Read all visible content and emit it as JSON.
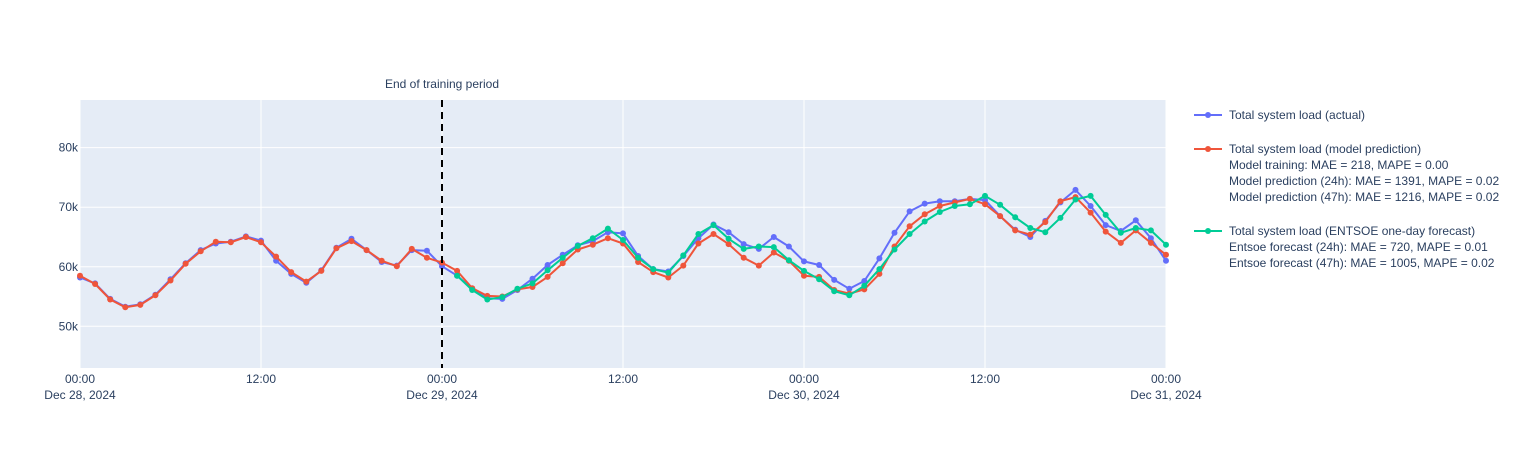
{
  "chart_data": {
    "type": "line",
    "title": "",
    "xlabel": "",
    "ylabel": "",
    "x_start": "2024-12-28 00:00",
    "x_step_hours": 1,
    "xlim": [
      "2024-12-28 00:00",
      "2024-12-31 00:00"
    ],
    "ylim": [
      43000,
      88000
    ],
    "y_ticks": [
      50000,
      60000,
      70000,
      80000
    ],
    "y_tick_labels": [
      "50k",
      "60k",
      "70k",
      "80k"
    ],
    "x_ticks": [
      {
        "time": "2024-12-28 00:00",
        "label": "00:00",
        "sublabel": "Dec 28, 2024"
      },
      {
        "time": "2024-12-28 12:00",
        "label": "12:00",
        "sublabel": ""
      },
      {
        "time": "2024-12-29 00:00",
        "label": "00:00",
        "sublabel": "Dec 29, 2024"
      },
      {
        "time": "2024-12-29 12:00",
        "label": "12:00",
        "sublabel": ""
      },
      {
        "time": "2024-12-30 00:00",
        "label": "00:00",
        "sublabel": "Dec 30, 2024"
      },
      {
        "time": "2024-12-30 12:00",
        "label": "12:00",
        "sublabel": ""
      },
      {
        "time": "2024-12-31 00:00",
        "label": "00:00",
        "sublabel": "Dec 31, 2024"
      }
    ],
    "grid": true,
    "legend_position": "right",
    "annotation": {
      "text": "End of training period",
      "x": "2024-12-29 00:00",
      "line_style": "dashed",
      "color": "#000000"
    },
    "series": [
      {
        "name": "Total system load (actual)",
        "color": "#636efa",
        "legend_notes": [],
        "x_start": "2024-12-28 00:00",
        "values": [
          58200,
          57200,
          54600,
          53300,
          53700,
          55300,
          57900,
          60600,
          62800,
          63900,
          64200,
          65100,
          64400,
          61000,
          58800,
          57300,
          59400,
          63200,
          64700,
          62800,
          60800,
          60200,
          62800,
          62700,
          60100,
          58500,
          56300,
          54700,
          54600,
          56100,
          58000,
          60300,
          62000,
          63600,
          64300,
          65800,
          65600,
          61800,
          59600,
          59200,
          61800,
          64800,
          67100,
          65800,
          63800,
          63000,
          65000,
          63400,
          60900,
          60300,
          57800,
          56300,
          57600,
          61400,
          65700,
          69300,
          70600,
          71000,
          71000,
          71400,
          71200,
          68500,
          66200,
          65000,
          67700,
          70800,
          72900,
          70200,
          67000,
          66000,
          67800,
          64800,
          61000
        ],
        "x_end_fraction": true
      },
      {
        "name": "Total system load (model prediction)",
        "color": "#ef553b",
        "legend_notes": [
          "Model training: MAE = 218, MAPE = 0.00",
          "Model prediction (24h): MAE = 1391, MAPE = 0.02",
          "Model prediction (47h): MAE = 1216, MAPE = 0.02"
        ],
        "x_start": "2024-12-28 00:00",
        "values": [
          58500,
          57100,
          54500,
          53200,
          53600,
          55200,
          57700,
          60500,
          62600,
          64200,
          64100,
          65000,
          64100,
          61700,
          59100,
          57500,
          59300,
          63100,
          64300,
          62800,
          61000,
          60100,
          63000,
          61500,
          60700,
          59300,
          56400,
          55100,
          55000,
          56200,
          56600,
          58300,
          60600,
          62900,
          63700,
          64800,
          63900,
          60800,
          59100,
          58200,
          60200,
          63900,
          65500,
          63800,
          61500,
          60200,
          62400,
          61000,
          58500,
          58300,
          56100,
          55500,
          56200,
          58800,
          63400,
          66800,
          68800,
          70200,
          70800,
          71400,
          70500,
          68500,
          66100,
          65400,
          67500,
          71000,
          71700,
          69100,
          65900,
          64000,
          66100,
          64000,
          62000
        ]
      },
      {
        "name": "Total system load (ENTSOE one-day forecast)",
        "color": "#00cc96",
        "legend_notes": [
          "Entsoe forecast (24h): MAE = 720, MAPE = 0.01",
          "Entsoe forecast (47h): MAE = 1005, MAPE = 0.02"
        ],
        "x_start": "2024-12-29 01:00",
        "values": [
          58500,
          56100,
          54500,
          54900,
          56300,
          57200,
          59400,
          61500,
          63500,
          64800,
          66400,
          64500,
          61500,
          59600,
          59000,
          61900,
          65500,
          67000,
          64700,
          63000,
          63400,
          63300,
          61100,
          59300,
          57900,
          55900,
          55200,
          56800,
          59600,
          62900,
          65500,
          67600,
          69200,
          70200,
          70500,
          71900,
          70400,
          68300,
          66500,
          65800,
          68200,
          71300,
          71900,
          68700,
          65700,
          66500,
          66100,
          63700,
          63800
        ]
      }
    ]
  }
}
